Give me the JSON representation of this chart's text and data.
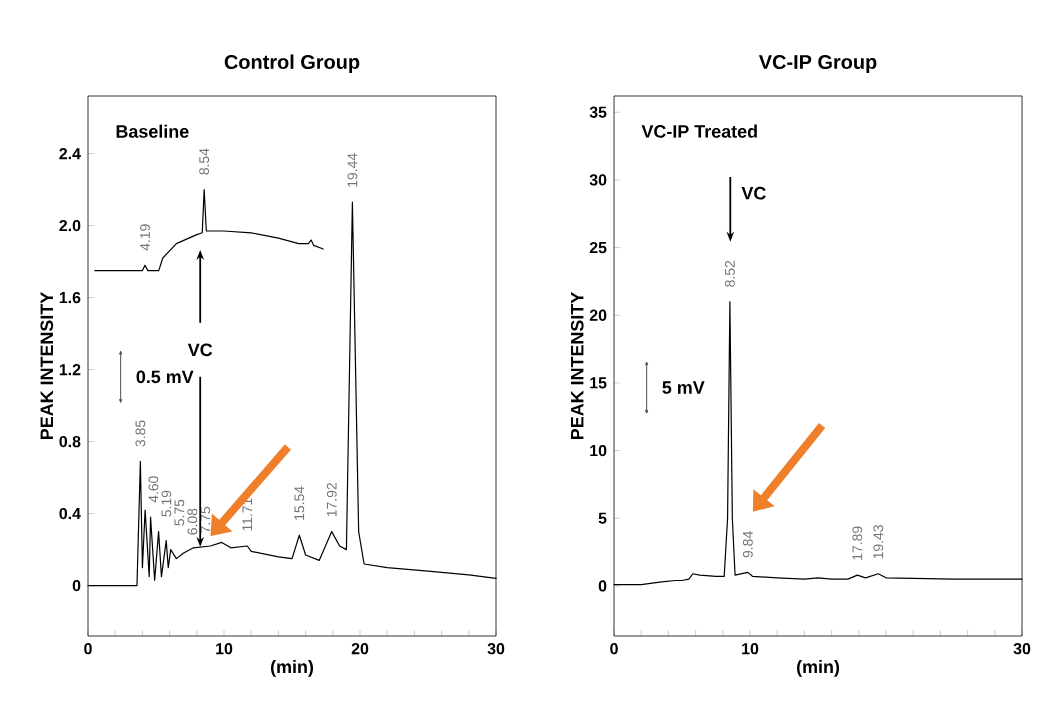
{
  "chart_data": [
    {
      "type": "line",
      "title": "Control Group",
      "xlabel": "(min)",
      "ylabel": "PEAK INTENSITY",
      "xlim": [
        0,
        30
      ],
      "ylim": [
        -0.28,
        2.72
      ],
      "xticks": [
        0,
        {
          "value": 2,
          "label": null
        },
        {
          "value": 4,
          "label": null
        },
        {
          "value": 6,
          "label": null
        },
        {
          "value": 8,
          "label": null
        },
        10,
        {
          "value": 12,
          "label": null
        },
        {
          "value": 14,
          "label": null
        },
        {
          "value": 16,
          "label": null
        },
        {
          "value": 18,
          "label": null
        },
        20,
        {
          "value": 22,
          "label": null
        },
        {
          "value": 24,
          "label": null
        },
        {
          "value": 26,
          "label": null
        },
        {
          "value": 28,
          "label": null
        },
        30
      ],
      "yticks": [
        0,
        0.4,
        0.8,
        1.2,
        1.6,
        {
          "value": 2,
          "label": "2.0"
        },
        2.4
      ],
      "grid": false,
      "legend": false,
      "series": [
        {
          "name": "Baseline",
          "color": "#000000",
          "x": [
            0.5,
            4.0,
            4.19,
            4.4,
            5.2,
            5.5,
            6.5,
            8.0,
            8.4,
            8.54,
            8.7,
            10,
            12,
            14,
            15.5,
            16.2,
            16.4,
            16.6,
            17.3
          ],
          "values": [
            1.75,
            1.75,
            1.78,
            1.75,
            1.75,
            1.82,
            1.9,
            1.95,
            1.96,
            2.2,
            1.97,
            1.97,
            1.96,
            1.93,
            1.9,
            1.9,
            1.92,
            1.89,
            1.87
          ]
        },
        {
          "color": "#000000",
          "x": [
            0,
            3.6,
            3.85,
            4.0,
            4.2,
            4.5,
            4.6,
            4.9,
            5.19,
            5.4,
            5.75,
            5.9,
            6.08,
            6.5,
            7.0,
            7.75,
            9.0,
            9.84,
            10.5,
            11.71,
            12.0,
            14.0,
            15.0,
            15.54,
            16.0,
            17.0,
            17.92,
            18.5,
            19.0,
            19.44,
            19.9,
            20.3,
            22,
            25,
            28,
            30
          ],
          "values": [
            0,
            0,
            0.69,
            0.1,
            0.42,
            0.05,
            0.38,
            0.03,
            0.3,
            0.05,
            0.25,
            0.1,
            0.2,
            0.15,
            0.18,
            0.21,
            0.22,
            0.24,
            0.21,
            0.22,
            0.19,
            0.16,
            0.15,
            0.28,
            0.17,
            0.14,
            0.3,
            0.22,
            0.2,
            2.13,
            0.3,
            0.12,
            0.1,
            0.08,
            0.06,
            0.04
          ]
        }
      ],
      "annotations": [
        {
          "text": "4.19",
          "x": 4.19,
          "y": 1.78
        },
        {
          "text": "8.54",
          "x": 8.54,
          "y": 2.2
        },
        {
          "text": "19.44",
          "x": 19.44,
          "y": 2.13
        },
        {
          "text": "3.85",
          "x": 3.85,
          "y": 0.69
        },
        {
          "text": "4.60",
          "x": 4.6,
          "y": 0.38
        },
        {
          "text": "5.19",
          "x": 5.19,
          "y": 0.3
        },
        {
          "text": "5.75",
          "x": 5.75,
          "y": 0.25
        },
        {
          "text": "6.08",
          "x": 6.08,
          "y": 0.2
        },
        {
          "text": "7.75",
          "x": 7.75,
          "y": 0.21
        },
        {
          "text": "11.71",
          "x": 11.71,
          "y": 0.22
        },
        {
          "text": "15.54",
          "x": 15.54,
          "y": 0.28
        },
        {
          "text": "17.92",
          "x": 17.92,
          "y": 0.3
        },
        "VC",
        "0.5 mV"
      ]
    },
    {
      "type": "line",
      "title": "VC-IP Group",
      "xlabel": "(min)",
      "ylabel": "PEAK INTENSITY",
      "xlim": [
        0,
        30
      ],
      "ylim": [
        -3.7,
        36.2
      ],
      "xticks": [
        0,
        {
          "value": 2,
          "label": null
        },
        {
          "value": 4,
          "label": null
        },
        {
          "value": 6,
          "label": null
        },
        {
          "value": 8,
          "label": null
        },
        10,
        {
          "value": 12,
          "label": null
        },
        {
          "value": 14,
          "label": null
        },
        {
          "value": 16,
          "label": null
        },
        {
          "value": 18,
          "label": null
        },
        {
          "value": 20,
          "label": null
        },
        {
          "value": 22,
          "label": null
        },
        {
          "value": 24,
          "label": null
        },
        {
          "value": 26,
          "label": null
        },
        {
          "value": 28,
          "label": null
        },
        30
      ],
      "yticks": [
        0,
        5,
        10,
        15,
        20,
        25,
        30,
        35
      ],
      "grid": false,
      "legend": false,
      "series": [
        {
          "name": "VC-IP Treated",
          "color": "#000000",
          "x": [
            0,
            2,
            3.5,
            4.5,
            5,
            5.5,
            5.8,
            6.3,
            7.5,
            8.1,
            8.35,
            8.52,
            8.7,
            8.9,
            9.84,
            10.2,
            12,
            14,
            15,
            16,
            17.2,
            17.89,
            18.5,
            19.43,
            20,
            25,
            30
          ],
          "values": [
            0.1,
            0.1,
            0.3,
            0.4,
            0.4,
            0.5,
            0.9,
            0.8,
            0.7,
            0.7,
            5,
            21.0,
            5,
            0.8,
            1.0,
            0.7,
            0.6,
            0.5,
            0.6,
            0.5,
            0.5,
            0.8,
            0.6,
            0.9,
            0.6,
            0.5,
            0.5
          ]
        }
      ],
      "annotations": [
        {
          "text": "8.52",
          "x": 8.52,
          "y": 21.0
        },
        {
          "text": "9.84",
          "x": 9.84,
          "y": 1.0
        },
        {
          "text": "17.89",
          "x": 17.89,
          "y": 0.8
        },
        {
          "text": "19.43",
          "x": 19.43,
          "y": 0.9
        },
        "VC",
        "5 mV"
      ]
    }
  ]
}
